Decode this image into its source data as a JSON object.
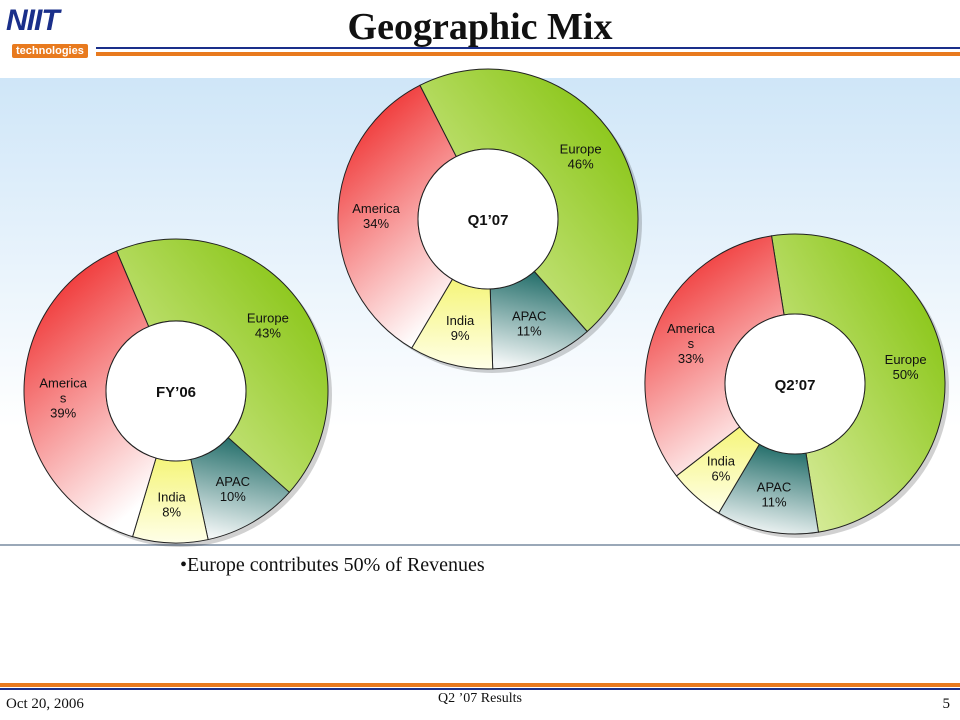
{
  "logo": {
    "main": "NIIT",
    "sub": "technologies"
  },
  "title": "Geographic Mix",
  "bullet": "•Europe contributes 50% of Revenues",
  "footer": {
    "date": "Oct 20, 2006",
    "center": "Q2 ’07 Results",
    "page": "5"
  },
  "colors": {
    "Europe": "#8fc91c",
    "America": "#ee2424",
    "India": "#f7f79a",
    "APAC": "#1f6f6a",
    "accent_orange": "#e87a1e",
    "accent_blue": "#1a2f8a"
  },
  "chart_data": [
    {
      "type": "pie",
      "center_label": "FY’06",
      "slices": [
        {
          "label": "Europe",
          "text": "Europe\n43%",
          "value": 43
        },
        {
          "label": "APAC",
          "text": "APAC\n10%",
          "value": 10
        },
        {
          "label": "India",
          "text": "India\n8%",
          "value": 8
        },
        {
          "label": "America",
          "text": "America\ns\n39%",
          "value": 39
        }
      ]
    },
    {
      "type": "pie",
      "center_label": "Q1’07",
      "slices": [
        {
          "label": "Europe",
          "text": "Europe\n46%",
          "value": 46
        },
        {
          "label": "APAC",
          "text": "APAC\n11%",
          "value": 11
        },
        {
          "label": "India",
          "text": "India\n9%",
          "value": 9
        },
        {
          "label": "America",
          "text": "America\n34%",
          "value": 34
        }
      ]
    },
    {
      "type": "pie",
      "center_label": "Q2’07",
      "slices": [
        {
          "label": "Europe",
          "text": "Europe\n50%",
          "value": 50
        },
        {
          "label": "APAC",
          "text": "APAC\n11%",
          "value": 11
        },
        {
          "label": "India",
          "text": "India\n6%",
          "value": 6
        },
        {
          "label": "America",
          "text": "America\ns\n33%",
          "value": 33
        }
      ]
    }
  ]
}
